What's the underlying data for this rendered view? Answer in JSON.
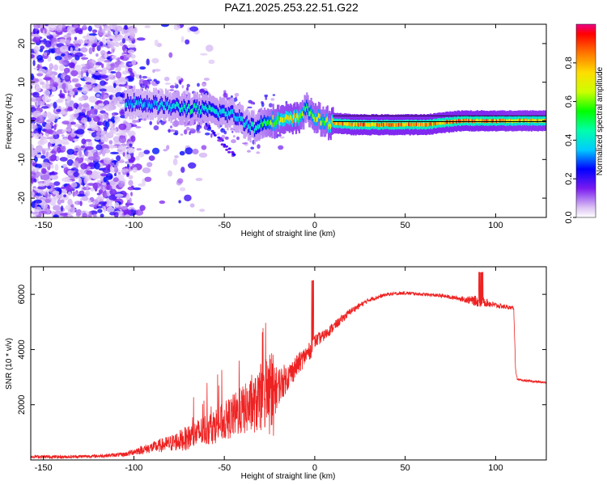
{
  "title": "PAZ1.2025.253.22.51.G22",
  "chart_data": [
    {
      "type": "heatmap",
      "name": "spectrogram",
      "xlabel": "Height of straight line (km)",
      "ylabel": "Frequency (Hz)",
      "xlim": [
        -157,
        128
      ],
      "ylim": [
        -25,
        25
      ],
      "xticks": [
        -150,
        -100,
        -50,
        0,
        50,
        100
      ],
      "yticks": [
        -20,
        -10,
        0,
        10,
        20
      ],
      "colorbar": {
        "label": "Normalized spectral amplitude",
        "range": [
          0,
          1
        ],
        "ticks": [
          0.0,
          0.2,
          0.4,
          0.6,
          0.8
        ]
      },
      "ridge": {
        "x": [
          -105,
          -95,
          -85,
          -75,
          -65,
          -55,
          -45,
          -38,
          -33,
          -28,
          -20,
          -10,
          -5,
          0,
          5,
          10,
          20,
          40,
          60,
          80,
          90,
          95,
          110,
          128
        ],
        "freq": [
          5,
          4.5,
          4,
          3.5,
          3,
          2.5,
          1.5,
          -0.5,
          -2,
          0,
          0,
          0.5,
          3,
          1,
          -0.5,
          -0.5,
          -1,
          -1,
          -1,
          0,
          0,
          0,
          0,
          0
        ],
        "amplitude": [
          0.4,
          0.4,
          0.4,
          0.5,
          0.5,
          0.5,
          0.45,
          0.45,
          0.5,
          0.6,
          0.8,
          0.85,
          0.6,
          0.75,
          0.7,
          0.9,
          0.95,
          0.95,
          0.95,
          0.95,
          0.95,
          0.95,
          0.9,
          0.9
        ]
      }
    },
    {
      "type": "line",
      "name": "snr",
      "xlabel": "Height of straight line (km)",
      "ylabel": "SNR (10 * v/v)",
      "xlim": [
        -157,
        128
      ],
      "ylim": [
        0,
        7000
      ],
      "xticks": [
        -150,
        -100,
        -50,
        0,
        50,
        100
      ],
      "yticks": [
        2000,
        4000,
        6000
      ],
      "color": "#ee2222",
      "envelope": {
        "x": [
          -157,
          -140,
          -120,
          -105,
          -100,
          -90,
          -80,
          -70,
          -60,
          -50,
          -40,
          -30,
          -25,
          -22,
          -20,
          -15,
          -10,
          -5,
          -2,
          0,
          5,
          10,
          20,
          30,
          40,
          50,
          60,
          70,
          80,
          90,
          95,
          100,
          110,
          111,
          112,
          120,
          128
        ],
        "y": [
          120,
          110,
          140,
          200,
          300,
          450,
          600,
          800,
          1100,
          1400,
          1800,
          2100,
          2300,
          2500,
          2700,
          3000,
          3400,
          3800,
          4000,
          4300,
          4500,
          4800,
          5400,
          5800,
          6000,
          6050,
          6000,
          5950,
          5850,
          5750,
          5700,
          5600,
          5500,
          3300,
          2900,
          2850,
          2800
        ],
        "noise": [
          60,
          60,
          60,
          80,
          120,
          200,
          300,
          450,
          600,
          700,
          900,
          1100,
          1100,
          900,
          700,
          500,
          400,
          350,
          300,
          250,
          200,
          180,
          120,
          80,
          60,
          60,
          60,
          70,
          80,
          200,
          150,
          100,
          60,
          60,
          40,
          40,
          40
        ]
      }
    }
  ]
}
